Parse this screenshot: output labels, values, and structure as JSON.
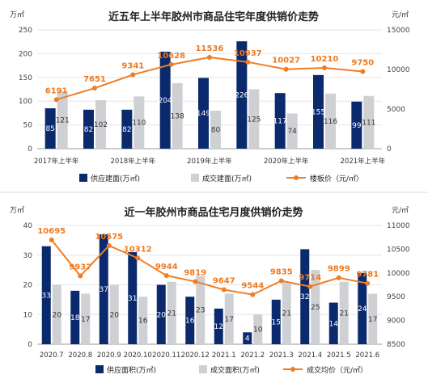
{
  "colors": {
    "supply": "#0b2a6e",
    "sold": "#cfd0d3",
    "price": "#ef7d25",
    "grid": "#e6e6e6"
  },
  "chart_data": [
    {
      "type": "bar",
      "title": "近五年上半年胶州市商品住宅年度供销价走势",
      "left_unit": "万㎡",
      "right_unit": "元/㎡",
      "categories": [
        "2017年上半年",
        "",
        "2018年上半年",
        "",
        "2019年上半年",
        "",
        "2020年上半年",
        "",
        "2021年上半年"
      ],
      "tick_labels": [
        "2017年上半年",
        "2018年上半年",
        "2019年上半年",
        "2020年上半年",
        "2021年上半年"
      ],
      "series": [
        {
          "name": "供应建面(万㎡)",
          "kind": "bar",
          "axis": "left",
          "values": [
            85,
            82,
            82,
            204,
            149,
            226,
            117,
            155,
            99
          ]
        },
        {
          "name": "成交建面(万㎡)",
          "kind": "bar",
          "axis": "left",
          "values": [
            121,
            102,
            110,
            138,
            80,
            125,
            74,
            116,
            111
          ]
        },
        {
          "name": "楼板价（元/㎡）",
          "kind": "line",
          "axis": "right",
          "values": [
            6191,
            7651,
            9341,
            10628,
            11536,
            10937,
            10027,
            10210,
            9750
          ]
        }
      ],
      "ylim_left": [
        0,
        250
      ],
      "yticks_left": [
        0,
        50,
        100,
        150,
        200,
        250
      ],
      "ylim_right": [
        0,
        15000
      ],
      "yticks_right": [
        0,
        5000,
        10000,
        15000
      ],
      "legend": "bottom"
    },
    {
      "type": "bar",
      "title": "近一年胶州市商品住宅月度供销价走势",
      "left_unit": "万㎡",
      "right_unit": "元/㎡",
      "categories": [
        "2020.7",
        "2020.8",
        "2020.9",
        "2020.10",
        "2020.11",
        "2020.12",
        "2021.1",
        "2021.2",
        "2021.3",
        "2021.4",
        "2021.5",
        "2021.6"
      ],
      "series": [
        {
          "name": "供应面积(万㎡)",
          "kind": "bar",
          "axis": "left",
          "values": [
            33,
            18,
            37,
            31,
            20,
            16,
            12,
            4,
            15,
            32,
            14,
            24
          ]
        },
        {
          "name": "成交面积(万㎡)",
          "kind": "bar",
          "axis": "left",
          "values": [
            20,
            17,
            20,
            16,
            21,
            23,
            17,
            10,
            21,
            25,
            21,
            17
          ]
        },
        {
          "name": "成交均价（元/㎡）",
          "kind": "line",
          "axis": "right",
          "values": [
            10695,
            9937,
            10575,
            10312,
            9944,
            9819,
            9647,
            9544,
            9835,
            9714,
            9899,
            9781
          ]
        }
      ],
      "ylim_left": [
        0,
        40
      ],
      "yticks_left": [
        0,
        10,
        20,
        30,
        40
      ],
      "ylim_right": [
        8500,
        11000
      ],
      "yticks_right": [
        8500,
        9000,
        9500,
        10000,
        10500,
        11000
      ],
      "legend": "bottom"
    }
  ]
}
